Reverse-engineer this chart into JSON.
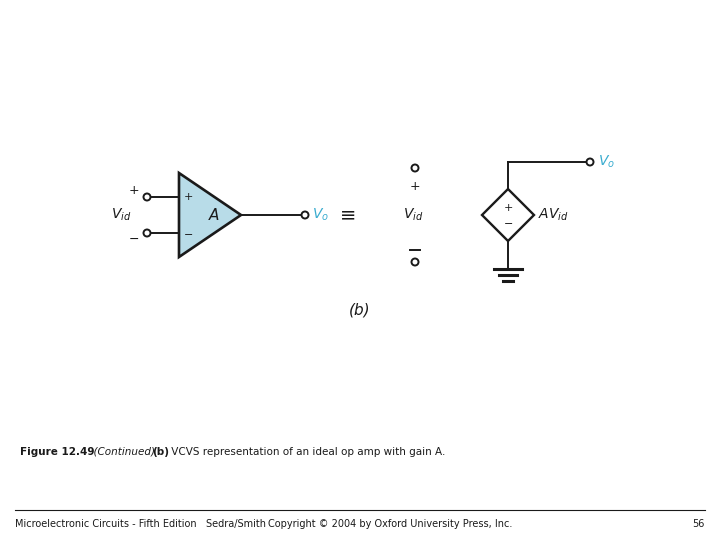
{
  "bg_color": "#ffffff",
  "line_color": "#1a1a1a",
  "cyan_color": "#3aaccf",
  "opamp_fill": "#b8dce8",
  "footer_left": "Microelectronic Circuits - Fifth Edition   Sedra/Smith",
  "footer_right": "Copyright © 2004 by Oxford University Press, Inc.",
  "footer_page": "56",
  "equiv_symbol": "≡",
  "caption_bold": "Figure 12.49",
  "caption_italic": "  (Continued) ",
  "caption_b_bold": "(b)",
  "caption_rest": " VCVS representation of an ideal op amp with gain ",
  "caption_A": "A."
}
